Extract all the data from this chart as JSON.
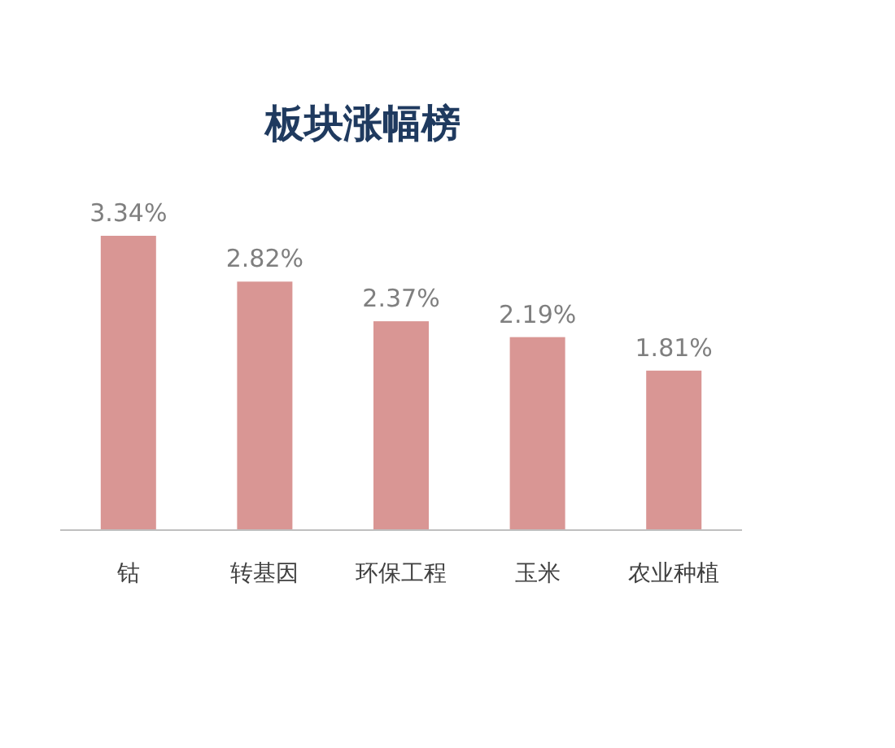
{
  "chart_data": {
    "type": "bar",
    "title": "板块涨幅榜",
    "categories": [
      "钴",
      "转基因",
      "环保工程",
      "玉米",
      "农业种植"
    ],
    "values": [
      3.34,
      2.82,
      2.37,
      2.19,
      1.81
    ],
    "value_labels": [
      "3.34%",
      "2.82%",
      "2.37%",
      "2.19%",
      "1.81%"
    ],
    "color": "#d99694"
  }
}
